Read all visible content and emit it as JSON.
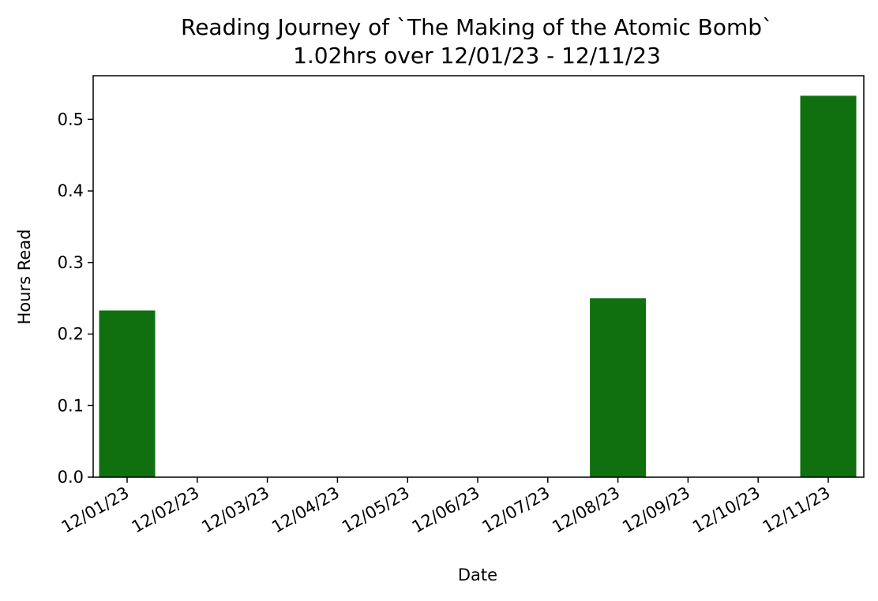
{
  "chart_data": {
    "type": "bar",
    "title": "Reading Journey of `The Making of the Atomic Bomb`",
    "subtitle": "1.02hrs over 12/01/23 - 12/11/23",
    "xlabel": "Date",
    "ylabel": "Hours Read",
    "categories": [
      "12/01/23",
      "12/02/23",
      "12/03/23",
      "12/04/23",
      "12/05/23",
      "12/06/23",
      "12/07/23",
      "12/08/23",
      "12/09/23",
      "12/10/23",
      "12/11/23"
    ],
    "values": [
      0.233,
      0,
      0,
      0,
      0,
      0,
      0,
      0.25,
      0,
      0,
      0.533
    ],
    "ylim": [
      0,
      0.561
    ],
    "yticks": [
      "0.0",
      "0.1",
      "0.2",
      "0.3",
      "0.4",
      "0.5"
    ],
    "ytick_values": [
      0,
      0.1,
      0.2,
      0.3,
      0.4,
      0.5
    ],
    "bar_color": "#107010",
    "grid": false,
    "legend": "none"
  }
}
